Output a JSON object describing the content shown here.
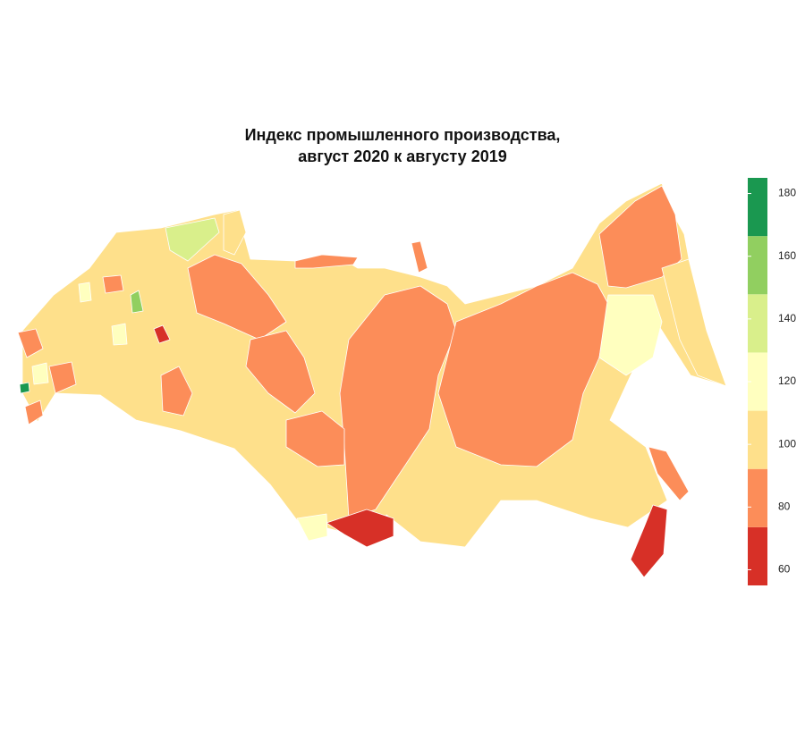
{
  "title": [
    "Индекс промышленного производства,",
    "август 2020 к августу 2019"
  ],
  "legend": {
    "lim": [
      55,
      185
    ],
    "ticks": [
      60,
      80,
      100,
      120,
      140,
      160,
      180
    ],
    "colors": [
      "#d73027",
      "#fc8d59",
      "#fee08b",
      "#ffffbf",
      "#d9ef8b",
      "#91cf60",
      "#1a9850"
    ]
  }
}
